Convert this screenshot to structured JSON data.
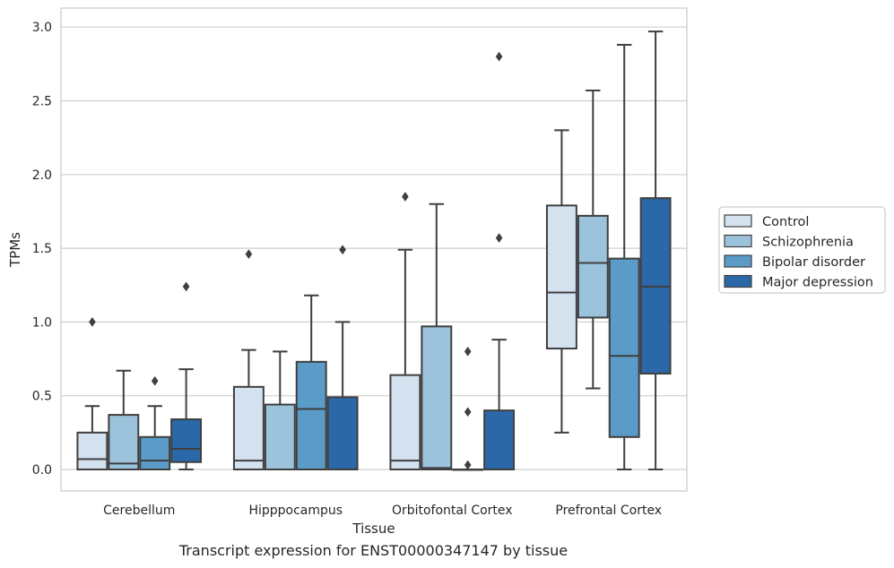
{
  "chart_data": {
    "type": "box",
    "xlabel": "Tissue",
    "ylabel": "TPMs",
    "caption": "Transcript expression for ENST00000347147 by tissue",
    "ylim": [
      -0.15,
      3.13
    ],
    "yticks": [
      0.0,
      0.5,
      1.0,
      1.5,
      2.0,
      2.5,
      3.0
    ],
    "ytick_labels": [
      "0.0",
      "0.5",
      "1.0",
      "1.5",
      "2.0",
      "2.5",
      "3.0"
    ],
    "grid": "horizontal",
    "legend_position": "right",
    "categories": [
      "Cerebellum",
      "Hipppocampus",
      "Orbitofontal Cortex",
      "Prefrontal Cortex"
    ],
    "series": [
      {
        "name": "Control",
        "color": "#d4e2f0",
        "boxes": [
          {
            "whislo": 0.0,
            "q1": 0.0,
            "med": 0.07,
            "q3": 0.25,
            "whishi": 0.43,
            "fliers": [
              1.0
            ]
          },
          {
            "whislo": 0.0,
            "q1": 0.0,
            "med": 0.06,
            "q3": 0.56,
            "whishi": 0.81,
            "fliers": [
              1.46
            ]
          },
          {
            "whislo": 0.0,
            "q1": 0.0,
            "med": 0.06,
            "q3": 0.64,
            "whishi": 1.49,
            "fliers": [
              1.85
            ]
          },
          {
            "whislo": 0.25,
            "q1": 0.82,
            "med": 1.2,
            "q3": 1.79,
            "whishi": 2.3,
            "fliers": []
          }
        ]
      },
      {
        "name": "Schizophrenia",
        "color": "#9cc3dc",
        "boxes": [
          {
            "whislo": 0.0,
            "q1": 0.0,
            "med": 0.04,
            "q3": 0.37,
            "whishi": 0.67,
            "fliers": []
          },
          {
            "whislo": 0.0,
            "q1": 0.0,
            "med": 0.0,
            "q3": 0.44,
            "whishi": 0.8,
            "fliers": []
          },
          {
            "whislo": 0.0,
            "q1": 0.0,
            "med": 0.01,
            "q3": 0.97,
            "whishi": 1.8,
            "fliers": []
          },
          {
            "whislo": 0.55,
            "q1": 1.03,
            "med": 1.4,
            "q3": 1.72,
            "whishi": 2.57,
            "fliers": []
          }
        ]
      },
      {
        "name": "Bipolar disorder",
        "color": "#5a9bc8",
        "boxes": [
          {
            "whislo": 0.0,
            "q1": 0.0,
            "med": 0.06,
            "q3": 0.22,
            "whishi": 0.43,
            "fliers": [
              0.6
            ]
          },
          {
            "whislo": 0.0,
            "q1": 0.0,
            "med": 0.41,
            "q3": 0.73,
            "whishi": 1.18,
            "fliers": []
          },
          {
            "whislo": 0.0,
            "q1": 0.0,
            "med": 0.0,
            "q3": 0.0,
            "whishi": 0.0,
            "fliers": [
              0.03,
              0.39,
              0.8
            ]
          },
          {
            "whislo": 0.0,
            "q1": 0.22,
            "med": 0.77,
            "q3": 1.43,
            "whishi": 2.88,
            "fliers": []
          }
        ]
      },
      {
        "name": "Major depression",
        "color": "#2a68a8",
        "boxes": [
          {
            "whislo": 0.0,
            "q1": 0.05,
            "med": 0.14,
            "q3": 0.34,
            "whishi": 0.68,
            "fliers": [
              1.24
            ]
          },
          {
            "whislo": 0.0,
            "q1": 0.0,
            "med": 0.0,
            "q3": 0.49,
            "whishi": 1.0,
            "fliers": [
              1.49
            ]
          },
          {
            "whislo": 0.0,
            "q1": 0.0,
            "med": 0.0,
            "q3": 0.4,
            "whishi": 0.88,
            "fliers": [
              1.57,
              2.8
            ]
          },
          {
            "whislo": 0.0,
            "q1": 0.65,
            "med": 1.24,
            "q3": 1.84,
            "whishi": 2.97,
            "fliers": []
          }
        ]
      }
    ]
  }
}
